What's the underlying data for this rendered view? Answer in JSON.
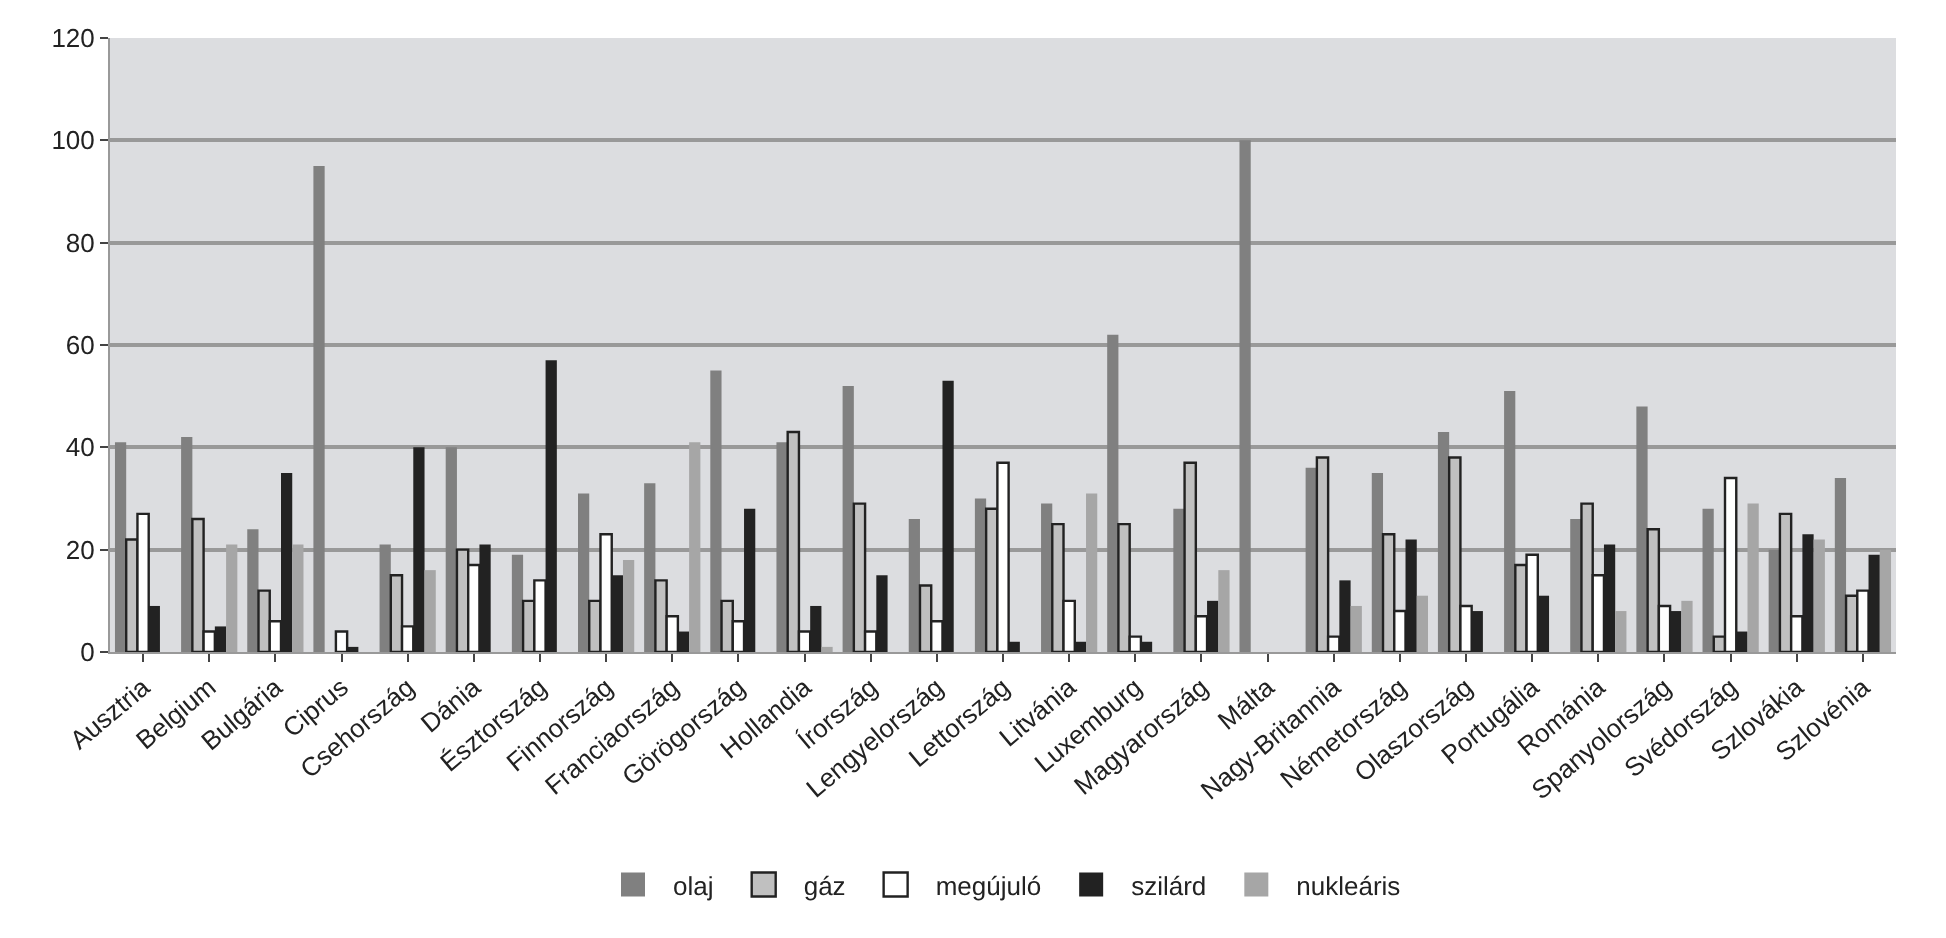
{
  "chart_data": {
    "type": "bar",
    "categories": [
      "Ausztria",
      "Belgium",
      "Bulgária",
      "Ciprus",
      "Csehország",
      "Dánia",
      "Észtország",
      "Finnország",
      "Franciaország",
      "Görögország",
      "Hollandia",
      "Írország",
      "Lengyelország",
      "Lettország",
      "Litvánia",
      "Luxemburg",
      "Magyarország",
      "Málta",
      "Nagy-Britannia",
      "Németország",
      "Olaszország",
      "Portugália",
      "Románia",
      "Spanyolország",
      "Svédország",
      "Szlovákia",
      "Szlovénia"
    ],
    "series": [
      {
        "name": "olaj",
        "color": "#808080",
        "values": [
          41,
          42,
          24,
          95,
          21,
          40,
          19,
          31,
          33,
          55,
          41,
          52,
          26,
          30,
          29,
          62,
          28,
          100,
          36,
          35,
          43,
          51,
          26,
          48,
          28,
          20,
          34
        ]
      },
      {
        "name": "gáz",
        "color": "#c0c0c0",
        "values": [
          22,
          26,
          12,
          0,
          15,
          20,
          10,
          10,
          14,
          10,
          43,
          29,
          13,
          28,
          25,
          25,
          37,
          0,
          38,
          23,
          38,
          17,
          29,
          24,
          3,
          27,
          11
        ]
      },
      {
        "name": "megújuló",
        "color": "#ffffff",
        "values": [
          27,
          4,
          6,
          4,
          5,
          17,
          14,
          23,
          7,
          6,
          4,
          4,
          6,
          37,
          10,
          3,
          7,
          0,
          3,
          8,
          9,
          19,
          15,
          9,
          34,
          7,
          12
        ]
      },
      {
        "name": "szilárd",
        "color": "#222222",
        "values": [
          9,
          5,
          35,
          1,
          40,
          21,
          57,
          15,
          4,
          28,
          9,
          15,
          53,
          2,
          2,
          2,
          10,
          0,
          14,
          22,
          8,
          11,
          21,
          8,
          4,
          23,
          19
        ]
      },
      {
        "name": "nukleáris",
        "color": "#a6a6a6",
        "values": [
          0,
          21,
          21,
          0,
          16,
          0,
          0,
          18,
          41,
          0,
          1,
          0,
          0,
          0,
          31,
          0,
          16,
          0,
          9,
          11,
          0,
          0,
          8,
          10,
          29,
          22,
          20
        ]
      }
    ],
    "ylim": [
      0,
      120
    ],
    "yticks": [
      0,
      20,
      40,
      60,
      80,
      100,
      120
    ],
    "grid": "y",
    "legend": "bottom"
  }
}
